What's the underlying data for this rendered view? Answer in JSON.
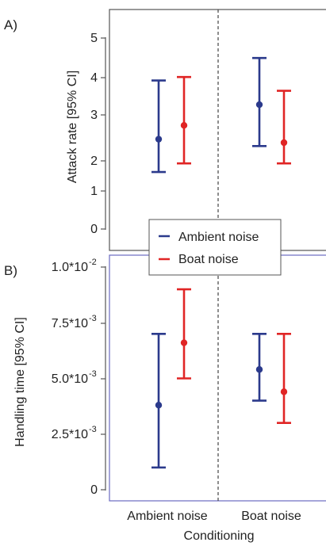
{
  "colors": {
    "ambient": "#2b3a8c",
    "boat": "#e02525",
    "frame": "#555555",
    "frame_b": "#6a6ac0",
    "divider": "#444444"
  },
  "legend": {
    "ambient_label": "Ambient noise",
    "boat_label": "Boat noise",
    "placement": "center, between panels"
  },
  "x_axis": {
    "label": "Conditioning",
    "categories": [
      "Ambient noise",
      "Boat noise"
    ]
  },
  "chart_data": [
    {
      "type": "scatter",
      "panel_label": "A)",
      "ylabel": "Attack rate [95% CI]",
      "yticks": [
        "0",
        "1",
        "2",
        "3",
        "4",
        "5"
      ],
      "ylim": [
        0,
        5.5
      ],
      "grid": false,
      "categories": [
        "Ambient noise",
        "Boat noise"
      ],
      "series": [
        {
          "name": "Ambient noise",
          "points": [
            {
              "category": "Ambient noise",
              "y": 2.6,
              "lo": 1.65,
              "hi": 4.3
            },
            {
              "category": "Boat noise",
              "y": 3.6,
              "lo": 2.4,
              "hi": 4.95
            }
          ]
        },
        {
          "name": "Boat noise",
          "points": [
            {
              "category": "Ambient noise",
              "y": 3.0,
              "lo": 1.9,
              "hi": 4.4
            },
            {
              "category": "Boat noise",
              "y": 2.5,
              "lo": 1.9,
              "hi": 4.0
            }
          ]
        }
      ]
    },
    {
      "type": "scatter",
      "panel_label": "B)",
      "ylabel": "Handling time [95% CI]",
      "yticks": [
        "0",
        "2.5*10",
        "5.0*10",
        "7.5*10",
        "1.0*10"
      ],
      "ytick_exponents": [
        "",
        "-3",
        "-3",
        "-3",
        "-2"
      ],
      "ylim": [
        0,
        0.01
      ],
      "grid": false,
      "categories": [
        "Ambient noise",
        "Boat noise"
      ],
      "series": [
        {
          "name": "Ambient noise",
          "points": [
            {
              "category": "Ambient noise",
              "y": 0.0038,
              "lo": 0.001,
              "hi": 0.007
            },
            {
              "category": "Boat noise",
              "y": 0.0054,
              "lo": 0.004,
              "hi": 0.007
            }
          ]
        },
        {
          "name": "Boat noise",
          "points": [
            {
              "category": "Ambient noise",
              "y": 0.0066,
              "lo": 0.005,
              "hi": 0.009
            },
            {
              "category": "Boat noise",
              "y": 0.0044,
              "lo": 0.003,
              "hi": 0.007
            }
          ]
        }
      ]
    }
  ]
}
